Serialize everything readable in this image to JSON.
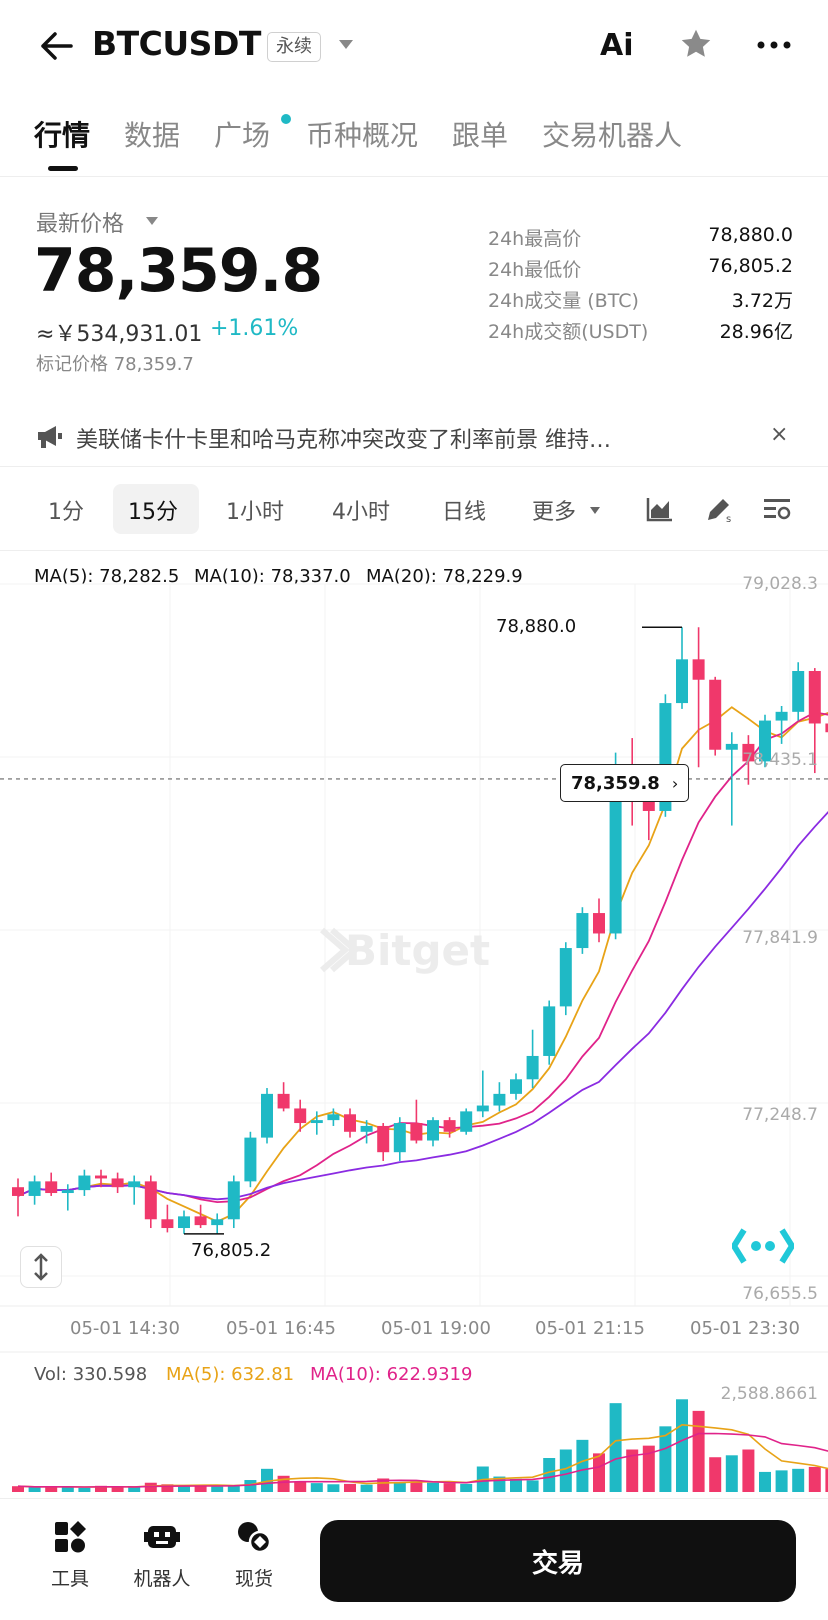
{
  "header": {
    "symbol": "BTCUSDT",
    "badge": "永续",
    "ai_label": "Ai",
    "icons": [
      "back-arrow-icon",
      "star-icon",
      "more-dots-icon"
    ]
  },
  "tabs": [
    {
      "label": "行情",
      "active": true
    },
    {
      "label": "数据",
      "active": false
    },
    {
      "label": "广场",
      "active": false,
      "dot": true
    },
    {
      "label": "币种概况",
      "active": false
    },
    {
      "label": "跟单",
      "active": false
    },
    {
      "label": "交易机器人",
      "active": false
    }
  ],
  "price": {
    "label": "最新价格",
    "last": "78,359.8",
    "cny": "≈￥534,931.01",
    "change": "+1.61%",
    "mark": "标记价格 78,359.7"
  },
  "stats": [
    {
      "label": "24h最高价",
      "value": "78,880.0"
    },
    {
      "label": "24h最低价",
      "value": "76,805.2"
    },
    {
      "label": "24h成交量 (BTC)",
      "value": "3.72万"
    },
    {
      "label": "24h成交额(USDT)",
      "value": "28.96亿"
    }
  ],
  "news": {
    "text": "美联储卡什卡里和哈马克称冲突改变了利率前景 维持…",
    "close": "×"
  },
  "intervals": {
    "items": [
      "1分",
      "15分",
      "1小时",
      "4小时",
      "日线",
      "更多"
    ],
    "selected": "15分"
  },
  "chart_data": {
    "type": "candlestick",
    "y_ticks": [
      "79,028.3",
      "78,435.1",
      "77,841.9",
      "77,248.7",
      "76,655.5"
    ],
    "x_ticks": [
      "05-01 14:30",
      "05-01 16:45",
      "05-01 19:00",
      "05-01 21:15",
      "05-01 23:30"
    ],
    "ylim": [
      76655.5,
      79028.3
    ],
    "high_label": "78,880.0",
    "low_label": "76,805.2",
    "current_price_label": "78,359.8",
    "current_price": 78359.8,
    "ma_legend": [
      {
        "label": "MA(5): 78,282.5",
        "color": "#e8a317"
      },
      {
        "label": "MA(10): 78,337.0",
        "color": "#e0238a"
      },
      {
        "label": "MA(20): 78,229.9",
        "color": "#8a2be2"
      }
    ],
    "colors": {
      "up": "#1fb9c5",
      "down": "#f0386b"
    },
    "candles": [
      [
        76960,
        76990,
        76860,
        76930
      ],
      [
        76930,
        77000,
        76900,
        76980
      ],
      [
        76980,
        77010,
        76930,
        76940
      ],
      [
        76940,
        76970,
        76880,
        76950
      ],
      [
        76950,
        77020,
        76930,
        77000
      ],
      [
        77000,
        77020,
        76960,
        76990
      ],
      [
        76990,
        77010,
        76940,
        76960
      ],
      [
        76960,
        77000,
        76900,
        76980
      ],
      [
        76980,
        77000,
        76820,
        76850
      ],
      [
        76850,
        76900,
        76805,
        76820
      ],
      [
        76820,
        76880,
        76800,
        76860
      ],
      [
        76860,
        76900,
        76820,
        76830
      ],
      [
        76830,
        76870,
        76800,
        76850
      ],
      [
        76850,
        77000,
        76820,
        76980
      ],
      [
        76980,
        77150,
        76960,
        77130
      ],
      [
        77130,
        77300,
        77110,
        77280
      ],
      [
        77280,
        77320,
        77220,
        77230
      ],
      [
        77230,
        77260,
        77150,
        77180
      ],
      [
        77180,
        77220,
        77140,
        77190
      ],
      [
        77190,
        77230,
        77170,
        77210
      ],
      [
        77210,
        77230,
        77130,
        77150
      ],
      [
        77150,
        77190,
        77110,
        77170
      ],
      [
        77170,
        77180,
        77050,
        77080
      ],
      [
        77080,
        77200,
        77050,
        77180
      ],
      [
        77180,
        77260,
        77110,
        77120
      ],
      [
        77120,
        77200,
        77100,
        77190
      ],
      [
        77190,
        77200,
        77130,
        77150
      ],
      [
        77150,
        77230,
        77140,
        77220
      ],
      [
        77220,
        77360,
        77200,
        77240
      ],
      [
        77240,
        77320,
        77220,
        77280
      ],
      [
        77280,
        77350,
        77260,
        77330
      ],
      [
        77330,
        77500,
        77300,
        77410
      ],
      [
        77410,
        77600,
        77380,
        77580
      ],
      [
        77580,
        77800,
        77550,
        77780
      ],
      [
        77780,
        77920,
        77760,
        77900
      ],
      [
        77900,
        77950,
        77800,
        77830
      ],
      [
        77830,
        78450,
        77810,
        78380
      ],
      [
        78380,
        78500,
        78200,
        78300
      ],
      [
        78300,
        78390,
        78150,
        78250
      ],
      [
        78250,
        78650,
        78230,
        78620
      ],
      [
        78620,
        78880,
        78600,
        78770
      ],
      [
        78770,
        78880,
        78400,
        78700
      ],
      [
        78700,
        78710,
        78440,
        78460
      ],
      [
        78460,
        78520,
        78200,
        78480
      ],
      [
        78480,
        78510,
        78340,
        78420
      ],
      [
        78420,
        78580,
        78400,
        78560
      ],
      [
        78560,
        78610,
        78480,
        78590
      ],
      [
        78590,
        78760,
        78560,
        78730
      ],
      [
        78730,
        78740,
        78380,
        78550
      ],
      [
        78550,
        78700,
        78500,
        78520
      ],
      [
        78520,
        78580,
        78350,
        78410
      ],
      [
        78410,
        78470,
        78300,
        78350
      ],
      [
        78350,
        78420,
        78330,
        78360
      ]
    ],
    "volume": {
      "legend": [
        {
          "label": "Vol: 330.598",
          "color": "#555555"
        },
        {
          "label": "MA(5): 632.81",
          "color": "#e8a317"
        },
        {
          "label": "MA(10): 622.9319",
          "color": "#e0238a"
        }
      ],
      "y_tick": "2,588.8661",
      "ymax": 2588.8661,
      "values": [
        150,
        120,
        130,
        140,
        110,
        160,
        130,
        120,
        240,
        200,
        170,
        150,
        140,
        180,
        310,
        600,
        420,
        260,
        230,
        200,
        210,
        190,
        350,
        260,
        280,
        240,
        230,
        210,
        660,
        400,
        340,
        300,
        880,
        1100,
        1350,
        1000,
        2300,
        1100,
        1200,
        1700,
        2400,
        2100,
        900,
        950,
        1100,
        520,
        560,
        600,
        650,
        600,
        520,
        450,
        330
      ]
    }
  },
  "bottom_nav": {
    "items": [
      {
        "label": "工具",
        "icon": "tools-grid-icon"
      },
      {
        "label": "机器人",
        "icon": "robot-icon"
      },
      {
        "label": "现货",
        "icon": "spot-coins-icon"
      }
    ],
    "trade_label": "交易"
  }
}
